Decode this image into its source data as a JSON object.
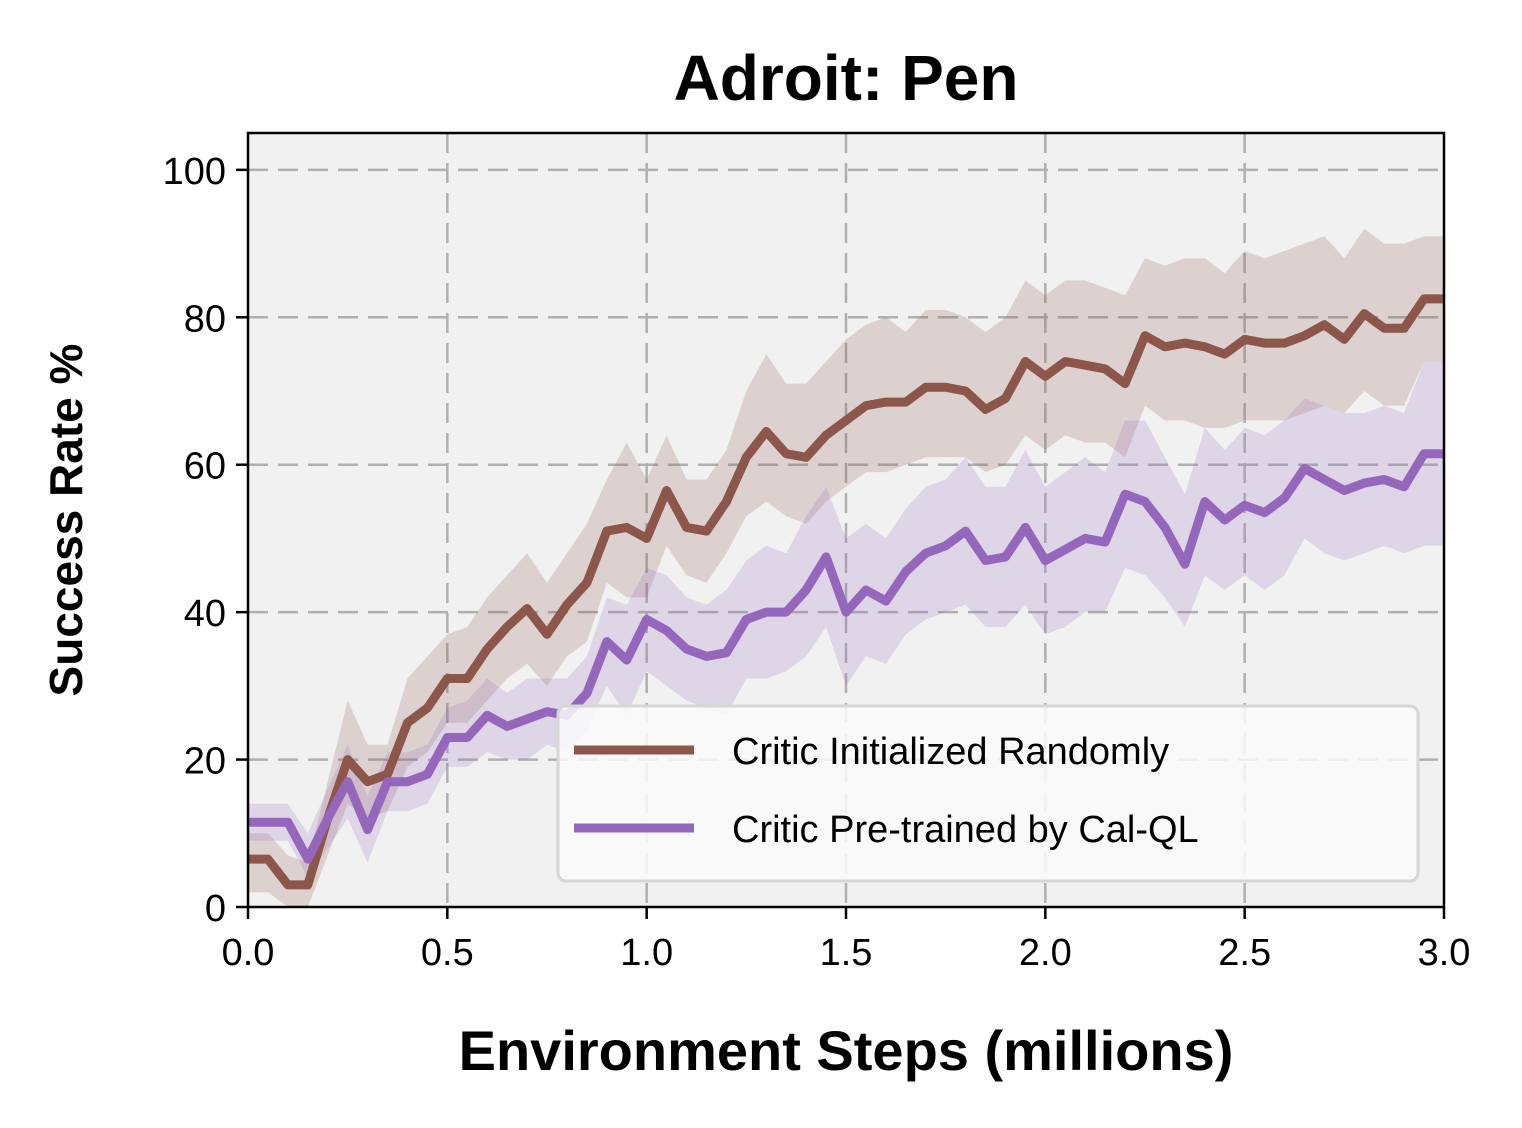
{
  "chart_data": {
    "type": "line",
    "title": "Adroit: Pen",
    "xlabel": "Environment Steps (millions)",
    "ylabel": "Success Rate %",
    "xlim": [
      0,
      3
    ],
    "ylim": [
      0,
      105
    ],
    "xticks": [
      0.0,
      0.5,
      1.0,
      1.5,
      2.0,
      2.5,
      3.0
    ],
    "xtick_labels": [
      "0.0",
      "0.5",
      "1.0",
      "1.5",
      "2.0",
      "2.5",
      "3.0"
    ],
    "yticks": [
      0,
      20,
      40,
      60,
      80,
      100
    ],
    "ytick_labels": [
      "0",
      "20",
      "40",
      "60",
      "80",
      "100"
    ],
    "grid": true,
    "legend_position": "lower-right",
    "x": [
      0.0,
      0.05,
      0.1,
      0.15,
      0.2,
      0.25,
      0.3,
      0.35,
      0.4,
      0.45,
      0.5,
      0.55,
      0.6,
      0.65,
      0.7,
      0.75,
      0.8,
      0.85,
      0.9,
      0.95,
      1.0,
      1.05,
      1.1,
      1.15,
      1.2,
      1.25,
      1.3,
      1.35,
      1.4,
      1.45,
      1.5,
      1.55,
      1.6,
      1.65,
      1.7,
      1.75,
      1.8,
      1.85,
      1.9,
      1.95,
      2.0,
      2.05,
      2.1,
      2.15,
      2.2,
      2.25,
      2.3,
      2.35,
      2.4,
      2.45,
      2.5,
      2.55,
      2.6,
      2.65,
      2.7,
      2.75,
      2.8,
      2.85,
      2.9,
      2.95,
      3.0
    ],
    "series": [
      {
        "name": "Critic Initialized Randomly",
        "color": "#8c564b",
        "values": [
          6.5,
          6.5,
          3,
          3,
          12,
          20,
          17,
          18,
          25,
          27,
          31,
          31,
          35,
          38,
          40.5,
          37,
          41,
          44,
          51,
          51.5,
          50,
          56.5,
          51.5,
          51,
          55,
          61,
          64.5,
          61.5,
          61,
          64,
          66,
          68,
          68.5,
          68.5,
          70.5,
          70.5,
          70,
          67.5,
          69,
          74,
          72,
          74,
          73.5,
          73,
          71,
          77.5,
          76,
          76.5,
          76,
          75,
          77,
          76.5,
          76.5,
          77.5,
          79,
          77,
          80.5,
          78.5,
          78.5,
          82.5,
          82.5
        ],
        "upper": [
          10,
          10,
          7,
          6,
          17,
          28,
          22,
          22,
          31,
          34,
          37,
          38,
          42,
          45,
          48,
          44,
          48,
          52,
          58,
          63,
          58,
          64,
          58,
          58,
          62,
          70,
          75,
          71,
          71,
          74,
          77,
          79,
          80,
          78,
          81,
          81,
          80,
          78,
          80,
          85,
          83,
          85,
          85,
          84,
          83,
          88,
          87,
          88,
          88,
          86,
          89,
          88,
          89,
          90,
          91,
          88,
          92,
          90,
          90,
          91,
          91
        ],
        "lower": [
          2,
          2,
          0,
          0,
          7,
          14,
          12,
          13,
          19,
          21,
          25,
          25,
          28,
          31,
          33,
          30,
          34,
          36,
          44,
          42,
          42,
          49,
          45,
          44,
          48,
          53,
          55,
          53,
          52,
          55,
          57,
          59,
          59,
          60,
          61,
          61,
          61,
          59,
          60,
          64,
          62,
          64,
          63,
          63,
          61,
          68,
          66,
          66,
          65,
          65,
          66,
          66,
          66,
          67,
          68,
          67,
          70,
          68,
          68,
          74,
          74
        ]
      },
      {
        "name": "Critic Pre-trained by Cal-QL",
        "color": "#9467bd",
        "values": [
          11.5,
          11.5,
          11.5,
          6.5,
          12,
          17,
          10.5,
          17,
          17,
          18,
          23,
          23,
          26,
          24.5,
          25.5,
          26.5,
          26,
          29,
          36,
          33.5,
          39,
          37.5,
          35,
          34,
          34.5,
          39,
          40,
          40,
          43,
          47.5,
          40,
          43,
          41.5,
          45.5,
          48,
          49,
          51,
          47,
          47.5,
          51.5,
          47,
          48.5,
          50,
          49.5,
          56,
          55,
          51.5,
          46.5,
          55,
          52.5,
          54.5,
          53.5,
          55.5,
          59.5,
          58,
          56.5,
          57.5,
          58,
          57,
          61.5,
          61.5
        ],
        "upper": [
          14,
          14,
          14,
          10,
          16,
          22,
          15,
          21,
          21,
          22,
          27,
          28,
          31,
          29,
          31,
          31,
          31,
          34,
          42,
          41,
          46,
          45,
          42,
          41,
          43,
          47,
          49,
          48,
          53,
          57,
          50,
          52,
          50,
          54,
          57,
          58,
          61,
          57,
          57,
          62,
          57,
          59,
          61,
          59,
          66,
          66,
          61,
          56,
          65,
          62,
          65,
          64,
          66,
          69,
          68,
          67,
          67,
          68,
          67,
          74,
          74
        ],
        "lower": [
          9,
          9,
          9,
          4,
          8,
          12,
          6,
          13,
          13,
          14,
          19,
          19,
          21,
          20,
          20,
          22,
          21,
          24,
          30,
          26,
          32,
          30,
          28,
          27,
          26,
          31,
          31,
          32,
          34,
          38,
          30,
          34,
          33,
          37,
          39,
          40,
          41,
          38,
          38,
          41,
          37,
          38,
          40,
          40,
          46,
          45,
          42,
          38,
          45,
          43,
          45,
          43,
          45,
          50,
          48,
          47,
          48,
          49,
          48,
          49,
          49
        ]
      }
    ]
  }
}
